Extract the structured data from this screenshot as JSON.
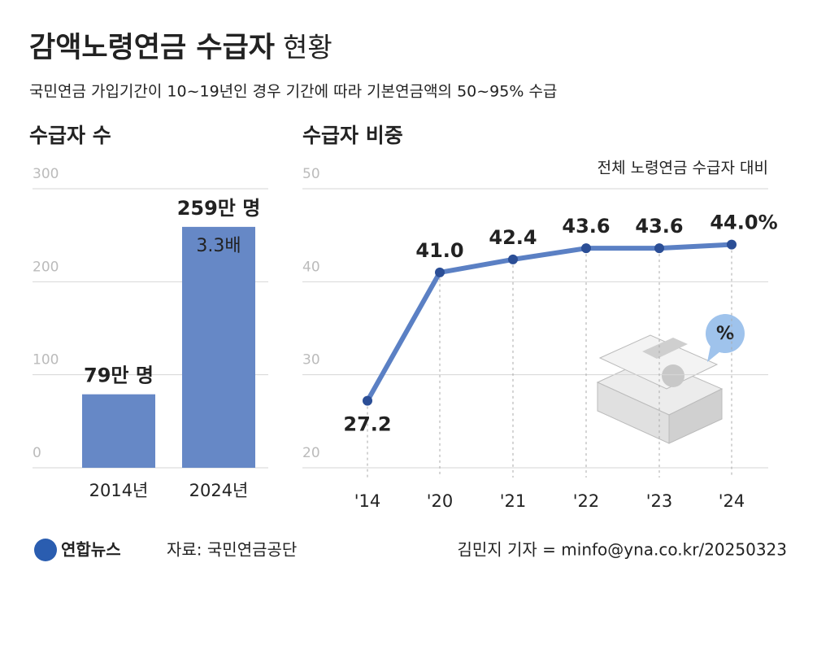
{
  "header": {
    "title": "감액노령연금 수급자",
    "title_suffix": "현황",
    "subtitle": "국민연금 가입기간이 10~19년인 경우 기간에 따라 기본연금액의 50~95% 수급"
  },
  "chart_data": [
    {
      "type": "bar",
      "title": "수급자 수",
      "categories": [
        "2014년",
        "2024년"
      ],
      "values": [
        79,
        259
      ],
      "value_labels": [
        "79만 명",
        "259만 명"
      ],
      "color": "#6688c6",
      "ylim": [
        0,
        300
      ],
      "yticks": [
        0,
        100,
        200,
        300
      ],
      "grid": true,
      "annotation": "3.3배"
    },
    {
      "type": "line",
      "title": "수급자 비중",
      "subtitle": "전체 노령연금 수급자 대비",
      "categories": [
        "'14",
        "'20",
        "'21",
        "'22",
        "'23",
        "'24"
      ],
      "values": [
        27.2,
        41.0,
        42.4,
        43.6,
        43.6,
        44.0
      ],
      "value_labels": [
        "27.2",
        "41.0",
        "42.4",
        "43.6",
        "43.6",
        "44.0%"
      ],
      "color": "#5b80c4",
      "marker_color": "#2b4e96",
      "ylim": [
        20,
        50
      ],
      "yticks": [
        20,
        30,
        40,
        50
      ],
      "grid": true
    }
  ],
  "footer": {
    "logo": "연합뉴스",
    "source": "자료: 국민연금공단",
    "credit": "김민지 기자 = minfo@yna.co.kr/20250323"
  }
}
